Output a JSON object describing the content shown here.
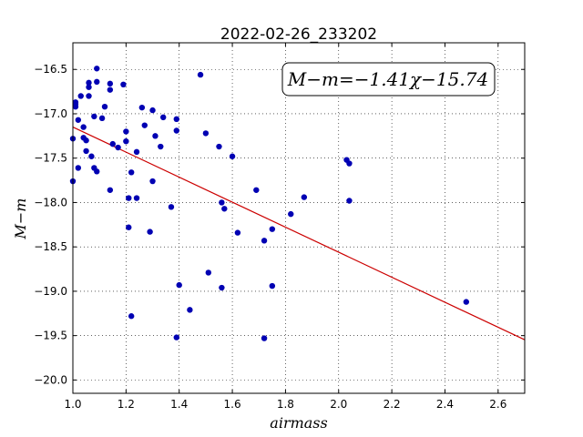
{
  "chart_data": {
    "type": "scatter",
    "title": "2022-02-26_233202",
    "xlabel": "airmass",
    "ylabel": "M−m",
    "xlim": [
      1.0,
      2.7
    ],
    "ylim": [
      -20.15,
      -16.2
    ],
    "y_inverted": true,
    "grid": true,
    "x_ticks": [
      1.0,
      1.2,
      1.4,
      1.6,
      1.8,
      2.0,
      2.2,
      2.4,
      2.6
    ],
    "x_tick_labels": [
      "1.0",
      "1.2",
      "1.4",
      "1.6",
      "1.8",
      "2.0",
      "2.2",
      "2.4",
      "2.6"
    ],
    "y_ticks": [
      -16.5,
      -17.0,
      -17.5,
      -18.0,
      -18.5,
      -19.0,
      -19.5,
      -20.0
    ],
    "y_tick_labels": [
      "−16.5",
      "−17.0",
      "−17.5",
      "−18.0",
      "−18.5",
      "−19.0",
      "−19.5",
      "−20.0"
    ],
    "annotation": "M−m=−1.41χ−15.74",
    "fit": {
      "slope": -1.41,
      "intercept": -15.74,
      "color": "#cc0000"
    },
    "point_color": "#0000b3",
    "points": [
      [
        1.0,
        -17.28
      ],
      [
        1.0,
        -17.76
      ],
      [
        1.01,
        -16.92
      ],
      [
        1.01,
        -16.89
      ],
      [
        1.01,
        -16.87
      ],
      [
        1.02,
        -17.07
      ],
      [
        1.02,
        -17.61
      ],
      [
        1.03,
        -16.8
      ],
      [
        1.04,
        -17.15
      ],
      [
        1.04,
        -17.27
      ],
      [
        1.05,
        -17.3
      ],
      [
        1.05,
        -17.42
      ],
      [
        1.06,
        -16.65
      ],
      [
        1.06,
        -16.7
      ],
      [
        1.06,
        -16.8
      ],
      [
        1.07,
        -17.48
      ],
      [
        1.08,
        -17.03
      ],
      [
        1.08,
        -17.61
      ],
      [
        1.09,
        -16.49
      ],
      [
        1.09,
        -16.64
      ],
      [
        1.09,
        -17.65
      ],
      [
        1.11,
        -17.05
      ],
      [
        1.12,
        -16.92
      ],
      [
        1.14,
        -16.66
      ],
      [
        1.14,
        -16.73
      ],
      [
        1.14,
        -17.86
      ],
      [
        1.15,
        -17.34
      ],
      [
        1.17,
        -17.38
      ],
      [
        1.19,
        -16.67
      ],
      [
        1.2,
        -17.31
      ],
      [
        1.2,
        -17.2
      ],
      [
        1.21,
        -18.28
      ],
      [
        1.21,
        -17.95
      ],
      [
        1.22,
        -17.66
      ],
      [
        1.22,
        -19.28
      ],
      [
        1.24,
        -17.95
      ],
      [
        1.24,
        -17.43
      ],
      [
        1.26,
        -16.93
      ],
      [
        1.27,
        -17.13
      ],
      [
        1.29,
        -18.33
      ],
      [
        1.3,
        -16.96
      ],
      [
        1.3,
        -17.76
      ],
      [
        1.31,
        -17.25
      ],
      [
        1.33,
        -17.37
      ],
      [
        1.34,
        -17.04
      ],
      [
        1.37,
        -18.05
      ],
      [
        1.39,
        -17.06
      ],
      [
        1.39,
        -17.19
      ],
      [
        1.39,
        -19.52
      ],
      [
        1.4,
        -18.93
      ],
      [
        1.44,
        -19.21
      ],
      [
        1.48,
        -16.56
      ],
      [
        1.5,
        -17.22
      ],
      [
        1.51,
        -18.79
      ],
      [
        1.55,
        -17.37
      ],
      [
        1.56,
        -18.0
      ],
      [
        1.56,
        -18.96
      ],
      [
        1.57,
        -18.07
      ],
      [
        1.6,
        -17.48
      ],
      [
        1.62,
        -18.34
      ],
      [
        1.69,
        -17.86
      ],
      [
        1.72,
        -18.43
      ],
      [
        1.72,
        -19.53
      ],
      [
        1.75,
        -18.3
      ],
      [
        1.75,
        -18.94
      ],
      [
        1.82,
        -18.13
      ],
      [
        1.87,
        -17.94
      ],
      [
        2.03,
        -17.52
      ],
      [
        2.04,
        -17.56
      ],
      [
        2.04,
        -17.98
      ],
      [
        2.48,
        -19.12
      ]
    ]
  }
}
